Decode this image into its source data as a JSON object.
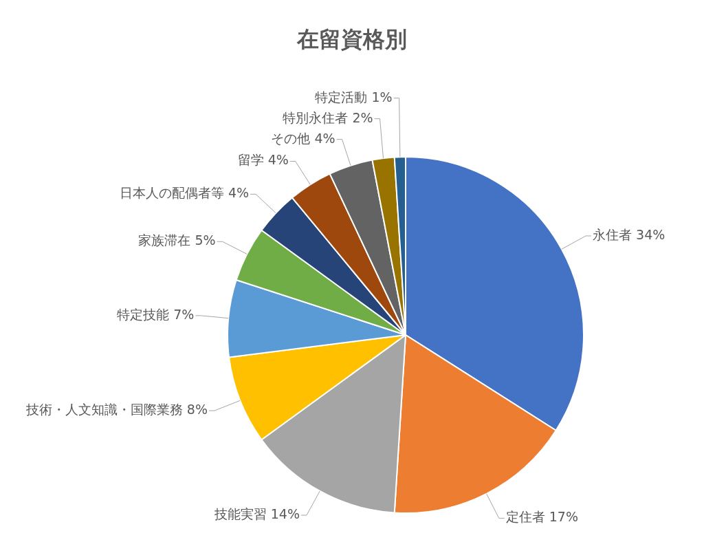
{
  "chart_data": {
    "type": "pie",
    "title": "在留資格別",
    "categories": [
      "永住者",
      "定住者",
      "技能実習",
      "技術・人文知識・国際業務",
      "特定技能",
      "家族滞在",
      "日本人の配偶者等",
      "留学",
      "その他",
      "特別永住者",
      "特定活動"
    ],
    "values": [
      34,
      17,
      14,
      8,
      7,
      5,
      4,
      4,
      4,
      2,
      1
    ],
    "value_labels": [
      "34%",
      "17%",
      "14%",
      "8%",
      "7%",
      "5%",
      "4%",
      "4%",
      "4%",
      "2%",
      "1%"
    ],
    "colors": [
      "#4472c4",
      "#ed7d31",
      "#a5a5a5",
      "#ffc000",
      "#5b9bd5",
      "#70ad47",
      "#264478",
      "#9e480e",
      "#636363",
      "#997300",
      "#255e91"
    ],
    "legend": false
  }
}
